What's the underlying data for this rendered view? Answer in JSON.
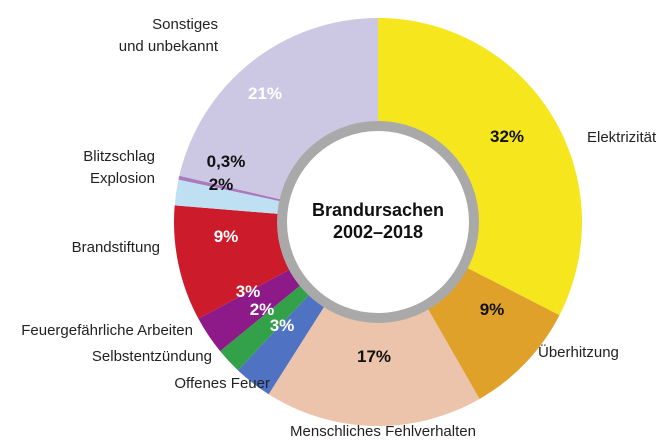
{
  "chart_data": {
    "type": "pie",
    "donut": true,
    "title": "Brandursachen\n2002–2018",
    "categories": [
      "Elektrizität",
      "Überhitzung",
      "Menschliches Fehlverhalten",
      "Offenes Feuer",
      "Selbstentzündung",
      "Feuergefährliche Arbeiten",
      "Brandstiftung",
      "Explosion",
      "Blitzschlag",
      "Sonstiges\nund unbekannt"
    ],
    "values": [
      32,
      9,
      17,
      3,
      2,
      3,
      9,
      2,
      0.3,
      21
    ],
    "value_labels": [
      "32%",
      "9%",
      "17%",
      "3%",
      "2%",
      "3%",
      "9%",
      "2%",
      "0,3%",
      "21%"
    ],
    "colors": [
      "#f5e61e",
      "#dfa12a",
      "#ebc4ab",
      "#4f72c2",
      "#33a04a",
      "#8e1a8a",
      "#cc1b2a",
      "#bfe0f2",
      "#a77bbd",
      "#ccc7e2"
    ],
    "value_label_colors": [
      "#111",
      "#111",
      "#111",
      "#fff",
      "#fff",
      "#fff",
      "#fff",
      "#111",
      "#111",
      "#fff"
    ]
  }
}
